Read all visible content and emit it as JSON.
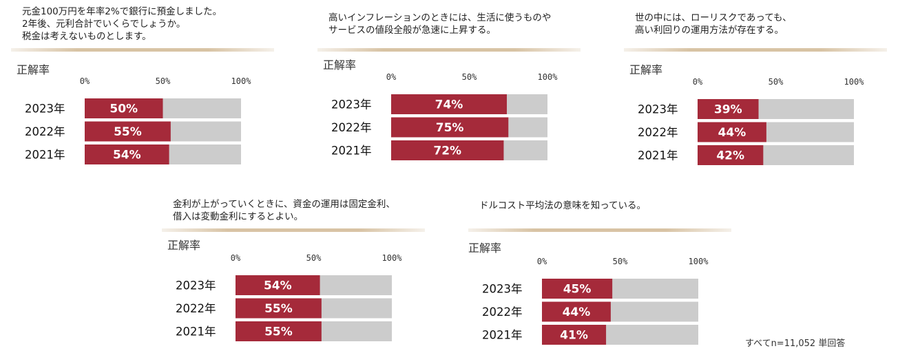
{
  "footnote": "すべてn=11,052 単回答",
  "chart_data": [
    {
      "type": "bar",
      "title": "元金100万円を年率2%で銀行に預金しました。\n2年後、元利合計でいくらでしょうか。\n税金は考えないものとします。",
      "ylabel": "正解率",
      "categories": [
        "2023年",
        "2022年",
        "2021年"
      ],
      "values": [
        50,
        55,
        54
      ],
      "value_labels": [
        "50%",
        "55%",
        "54%"
      ],
      "xticks": [
        "0%",
        "50%",
        "100%"
      ],
      "xlim": [
        0,
        100
      ],
      "colors": {
        "bar": "#a52a3a",
        "track": "#cccccc"
      }
    },
    {
      "type": "bar",
      "title": "高いインフレーションのときには、生活に使うものや\nサービスの値段全般が急速に上昇する。",
      "ylabel": "正解率",
      "categories": [
        "2023年",
        "2022年",
        "2021年"
      ],
      "values": [
        74,
        75,
        72
      ],
      "value_labels": [
        "74%",
        "75%",
        "72%"
      ],
      "xticks": [
        "0%",
        "50%",
        "100%"
      ],
      "xlim": [
        0,
        100
      ],
      "colors": {
        "bar": "#a52a3a",
        "track": "#cccccc"
      }
    },
    {
      "type": "bar",
      "title": "世の中には、ローリスクであっても、\n高い利回りの運用方法が存在する。",
      "ylabel": "正解率",
      "categories": [
        "2023年",
        "2022年",
        "2021年"
      ],
      "values": [
        39,
        44,
        42
      ],
      "value_labels": [
        "39%",
        "44%",
        "42%"
      ],
      "xticks": [
        "0%",
        "50%",
        "100%"
      ],
      "xlim": [
        0,
        100
      ],
      "colors": {
        "bar": "#a52a3a",
        "track": "#cccccc"
      }
    },
    {
      "type": "bar",
      "title": "金利が上がっていくときに、資金の運用は固定金利、\n借入は変動金利にするとよい。",
      "ylabel": "正解率",
      "categories": [
        "2023年",
        "2022年",
        "2021年"
      ],
      "values": [
        54,
        55,
        55
      ],
      "value_labels": [
        "54%",
        "55%",
        "55%"
      ],
      "xticks": [
        "0%",
        "50%",
        "100%"
      ],
      "xlim": [
        0,
        100
      ],
      "colors": {
        "bar": "#a52a3a",
        "track": "#cccccc"
      }
    },
    {
      "type": "bar",
      "title": "ドルコスト平均法の意味を知っている。",
      "ylabel": "正解率",
      "categories": [
        "2023年",
        "2022年",
        "2021年"
      ],
      "values": [
        45,
        44,
        41
      ],
      "value_labels": [
        "45%",
        "44%",
        "41%"
      ],
      "xticks": [
        "0%",
        "50%",
        "100%"
      ],
      "xlim": [
        0,
        100
      ],
      "colors": {
        "bar": "#a52a3a",
        "track": "#cccccc"
      }
    }
  ]
}
